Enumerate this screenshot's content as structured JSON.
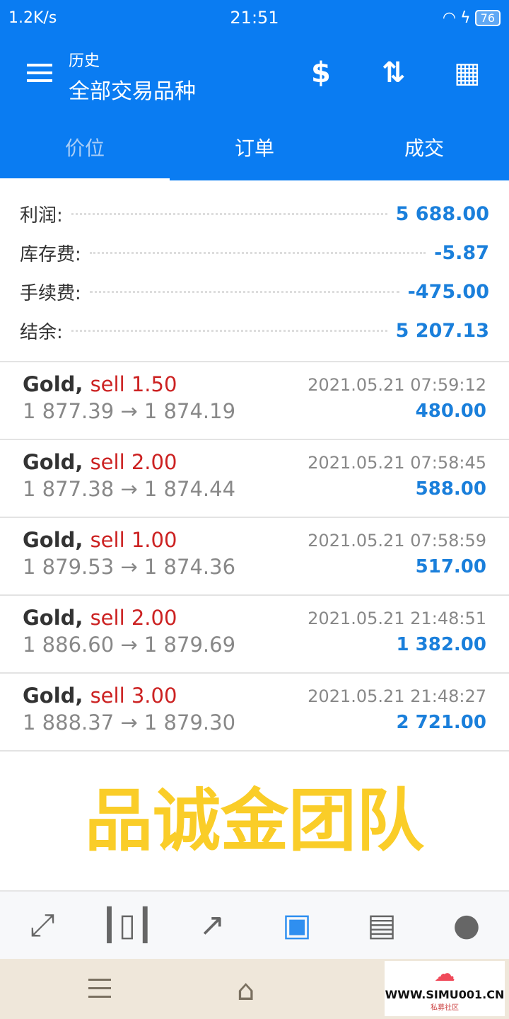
{
  "status": {
    "speed": "1.2K/s",
    "time": "21:51",
    "battery": "76"
  },
  "header": {
    "subtitle": "历史",
    "title": "全部交易品种"
  },
  "tabs": [
    {
      "label": "价位"
    },
    {
      "label": "订单"
    },
    {
      "label": "成交"
    }
  ],
  "summary": [
    {
      "label": "利润:",
      "value": "5 688.00"
    },
    {
      "label": "库存费:",
      "value": "-5.87"
    },
    {
      "label": "手续费:",
      "value": "-475.00"
    },
    {
      "label": "结余:",
      "value": "5 207.13"
    }
  ],
  "deals": [
    {
      "symbol": "Gold,",
      "side": "sell 1.50",
      "prices": "1 877.39 → 1 874.19",
      "datetime": "2021.05.21 07:59:12",
      "profit": "480.00"
    },
    {
      "symbol": "Gold,",
      "side": "sell 2.00",
      "prices": "1 877.38 → 1 874.44",
      "datetime": "2021.05.21 07:58:45",
      "profit": "588.00"
    },
    {
      "symbol": "Gold,",
      "side": "sell 1.00",
      "prices": "1 879.53 → 1 874.36",
      "datetime": "2021.05.21 07:58:59",
      "profit": "517.00"
    },
    {
      "symbol": "Gold,",
      "side": "sell 2.00",
      "prices": "1 886.60 → 1 879.69",
      "datetime": "2021.05.21 21:48:51",
      "profit": "1 382.00"
    },
    {
      "symbol": "Gold,",
      "side": "sell 3.00",
      "prices": "1 888.37 → 1 879.30",
      "datetime": "2021.05.21 21:48:27",
      "profit": "2 721.00"
    }
  ],
  "watermark": "品诚金团队",
  "logo": {
    "url": "WWW.SIMU001.CN",
    "caption": "私募社区"
  },
  "colors": {
    "primary": "#0a7cf2",
    "profit": "#1a7fdb",
    "sell": "#cc2222",
    "watermark": "#facd28"
  }
}
